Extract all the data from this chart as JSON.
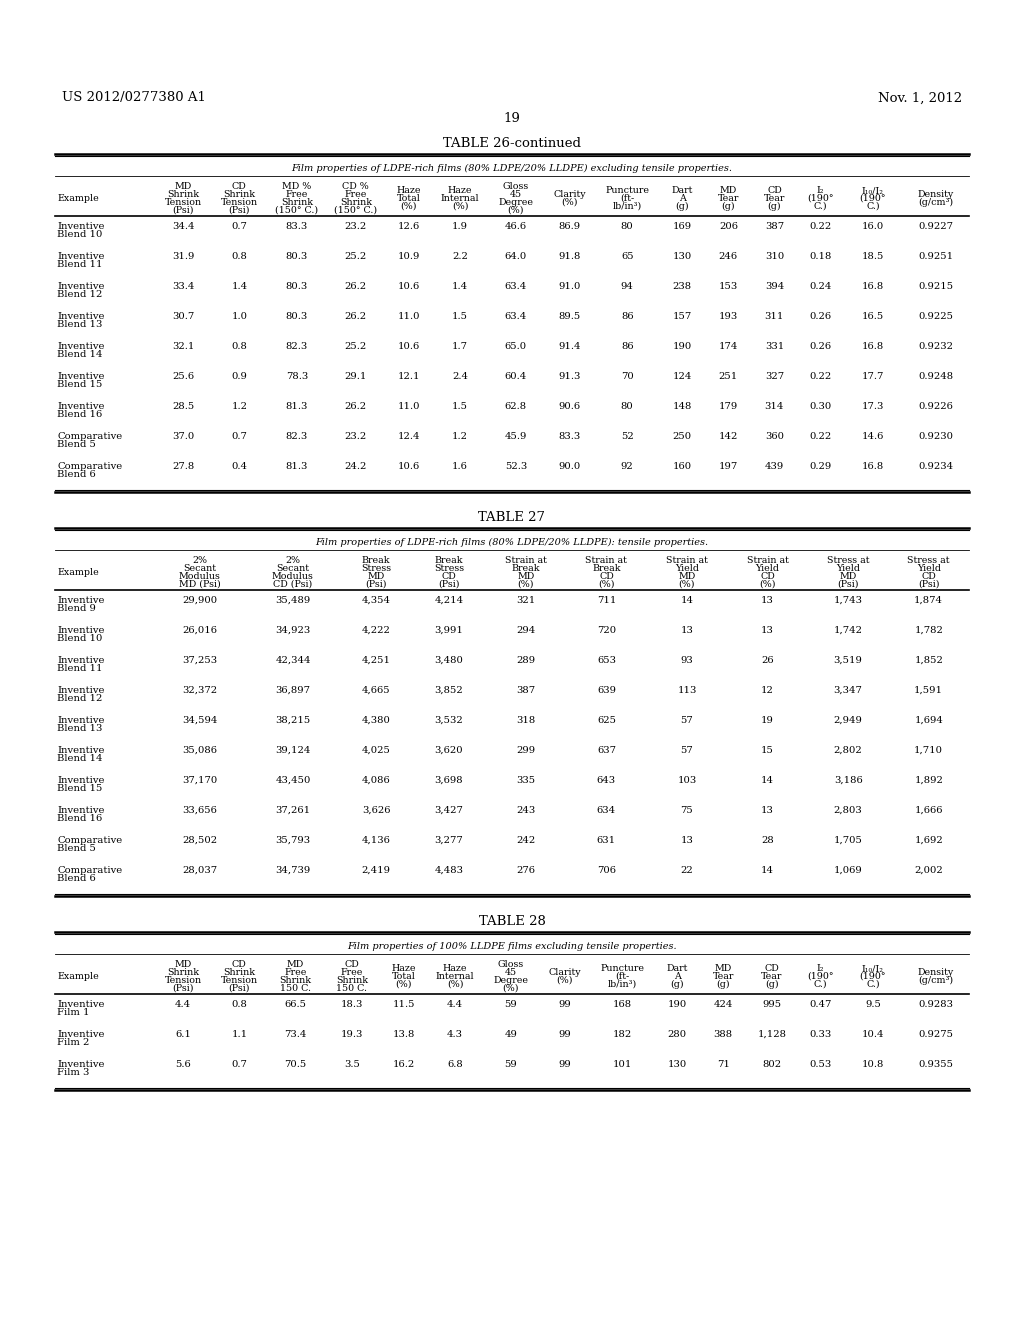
{
  "header_left": "US 2012/0277380 A1",
  "header_right": "Nov. 1, 2012",
  "page_number": "19",
  "table26_title": "TABLE 26-continued",
  "table26_subtitle": "Film properties of LDPE-rich films (80% LDPE/20% LLDPE) excluding tensile properties.",
  "table26_col_headers": [
    "Example",
    "MD\nShrink\nTension\n(Psi)",
    "CD\nShrink\nTension\n(Psi)",
    "MD %\nFree\nShrink\n(150° C.)",
    "CD %\nFree\nShrink\n(150° C.)",
    "Haze\nTotal\n(%)",
    "Haze\nInternal\n(%)",
    "Gloss\n45\nDegree\n(%)",
    "Clarity\n(%)",
    "Puncture\n(ft-\nlb/in³)",
    "Dart\nA\n(g)",
    "MD\nTear\n(g)",
    "CD\nTear\n(g)",
    "I₂\n(190°\nC.)",
    "I₁₀/I₂\n(190°\nC.)",
    "Density\n(g/cm³)"
  ],
  "table26_rows": [
    [
      "Inventive\nBlend 10",
      "34.4",
      "0.7",
      "83.3",
      "23.2",
      "12.6",
      "1.9",
      "46.6",
      "86.9",
      "80",
      "169",
      "206",
      "387",
      "0.22",
      "16.0",
      "0.9227"
    ],
    [
      "Inventive\nBlend 11",
      "31.9",
      "0.8",
      "80.3",
      "25.2",
      "10.9",
      "2.2",
      "64.0",
      "91.8",
      "65",
      "130",
      "246",
      "310",
      "0.18",
      "18.5",
      "0.9251"
    ],
    [
      "Inventive\nBlend 12",
      "33.4",
      "1.4",
      "80.3",
      "26.2",
      "10.6",
      "1.4",
      "63.4",
      "91.0",
      "94",
      "238",
      "153",
      "394",
      "0.24",
      "16.8",
      "0.9215"
    ],
    [
      "Inventive\nBlend 13",
      "30.7",
      "1.0",
      "80.3",
      "26.2",
      "11.0",
      "1.5",
      "63.4",
      "89.5",
      "86",
      "157",
      "193",
      "311",
      "0.26",
      "16.5",
      "0.9225"
    ],
    [
      "Inventive\nBlend 14",
      "32.1",
      "0.8",
      "82.3",
      "25.2",
      "10.6",
      "1.7",
      "65.0",
      "91.4",
      "86",
      "190",
      "174",
      "331",
      "0.26",
      "16.8",
      "0.9232"
    ],
    [
      "Inventive\nBlend 15",
      "25.6",
      "0.9",
      "78.3",
      "29.1",
      "12.1",
      "2.4",
      "60.4",
      "91.3",
      "70",
      "124",
      "251",
      "327",
      "0.22",
      "17.7",
      "0.9248"
    ],
    [
      "Inventive\nBlend 16",
      "28.5",
      "1.2",
      "81.3",
      "26.2",
      "11.0",
      "1.5",
      "62.8",
      "90.6",
      "80",
      "148",
      "179",
      "314",
      "0.30",
      "17.3",
      "0.9226"
    ],
    [
      "Comparative\nBlend 5",
      "37.0",
      "0.7",
      "82.3",
      "23.2",
      "12.4",
      "1.2",
      "45.9",
      "83.3",
      "52",
      "250",
      "142",
      "360",
      "0.22",
      "14.6",
      "0.9230"
    ],
    [
      "Comparative\nBlend 6",
      "27.8",
      "0.4",
      "81.3",
      "24.2",
      "10.6",
      "1.6",
      "52.3",
      "90.0",
      "92",
      "160",
      "197",
      "439",
      "0.29",
      "16.8",
      "0.9234"
    ]
  ],
  "table27_title": "TABLE 27",
  "table27_subtitle": "Film properties of LDPE-rich films (80% LDPE/20% LLDPE): tensile properties.",
  "table27_col_headers": [
    "Example",
    "2%\nSecant\nModulus\nMD (Psi)",
    "2%\nSecant\nModulus\nCD (Psi)",
    "Break\nStress\nMD\n(Psi)",
    "Break\nStress\nCD\n(Psi)",
    "Strain at\nBreak\nMD\n(%)",
    "Strain at\nBreak\nCD\n(%)",
    "Strain at\nYield\nMD\n(%)",
    "Strain at\nYield\nCD\n(%)",
    "Stress at\nYield\nMD\n(Psi)",
    "Stress at\nYield\nCD\n(Psi)"
  ],
  "table27_rows": [
    [
      "Inventive\nBlend 9",
      "29,900",
      "35,489",
      "4,354",
      "4,214",
      "321",
      "711",
      "14",
      "13",
      "1,743",
      "1,874"
    ],
    [
      "Inventive\nBlend 10",
      "26,016",
      "34,923",
      "4,222",
      "3,991",
      "294",
      "720",
      "13",
      "13",
      "1,742",
      "1,782"
    ],
    [
      "Inventive\nBlend 11",
      "37,253",
      "42,344",
      "4,251",
      "3,480",
      "289",
      "653",
      "93",
      "26",
      "3,519",
      "1,852"
    ],
    [
      "Inventive\nBlend 12",
      "32,372",
      "36,897",
      "4,665",
      "3,852",
      "387",
      "639",
      "113",
      "12",
      "3,347",
      "1,591"
    ],
    [
      "Inventive\nBlend 13",
      "34,594",
      "38,215",
      "4,380",
      "3,532",
      "318",
      "625",
      "57",
      "19",
      "2,949",
      "1,694"
    ],
    [
      "Inventive\nBlend 14",
      "35,086",
      "39,124",
      "4,025",
      "3,620",
      "299",
      "637",
      "57",
      "15",
      "2,802",
      "1,710"
    ],
    [
      "Inventive\nBlend 15",
      "37,170",
      "43,450",
      "4,086",
      "3,698",
      "335",
      "643",
      "103",
      "14",
      "3,186",
      "1,892"
    ],
    [
      "Inventive\nBlend 16",
      "33,656",
      "37,261",
      "3,626",
      "3,427",
      "243",
      "634",
      "75",
      "13",
      "2,803",
      "1,666"
    ],
    [
      "Comparative\nBlend 5",
      "28,502",
      "35,793",
      "4,136",
      "3,277",
      "242",
      "631",
      "13",
      "28",
      "1,705",
      "1,692"
    ],
    [
      "Comparative\nBlend 6",
      "28,037",
      "34,739",
      "2,419",
      "4,483",
      "276",
      "706",
      "22",
      "14",
      "1,069",
      "2,002"
    ]
  ],
  "table28_title": "TABLE 28",
  "table28_subtitle": "Film properties of 100% LLDPE films excluding tensile properties.",
  "table28_col_headers": [
    "Example",
    "MD\nShrink\nTension\n(Psi)",
    "CD\nShrink\nTension\n(Psi)",
    "MD\nFree\nShrink\n150 C.",
    "CD\nFree\nShrink\n150 C.",
    "Haze\nTotal\n(%)",
    "Haze\nInternal\n(%)",
    "Gloss\n45\nDegree\n(%)",
    "Clarity\n(%)",
    "Puncture\n(ft-\nlb/in³)",
    "Dart\nA\n(g)",
    "MD\nTear\n(g)",
    "CD\nTear\n(g)",
    "I₂\n(190°\nC.)",
    "I₁₀/I₂\n(190°\nC.)",
    "Density\n(g/cm³)"
  ],
  "table28_rows": [
    [
      "Inventive\nFilm 1",
      "4.4",
      "0.8",
      "66.5",
      "18.3",
      "11.5",
      "4.4",
      "59",
      "99",
      "168",
      "190",
      "424",
      "995",
      "0.47",
      "9.5",
      "0.9283"
    ],
    [
      "Inventive\nFilm 2",
      "6.1",
      "1.1",
      "73.4",
      "19.3",
      "13.8",
      "4.3",
      "49",
      "99",
      "182",
      "280",
      "388",
      "1,128",
      "0.33",
      "10.4",
      "0.9275"
    ],
    [
      "Inventive\nFilm 3",
      "5.6",
      "0.7",
      "70.5",
      "3.5",
      "16.2",
      "6.8",
      "59",
      "99",
      "101",
      "130",
      "71",
      "802",
      "0.53",
      "10.8",
      "0.9355"
    ]
  ]
}
